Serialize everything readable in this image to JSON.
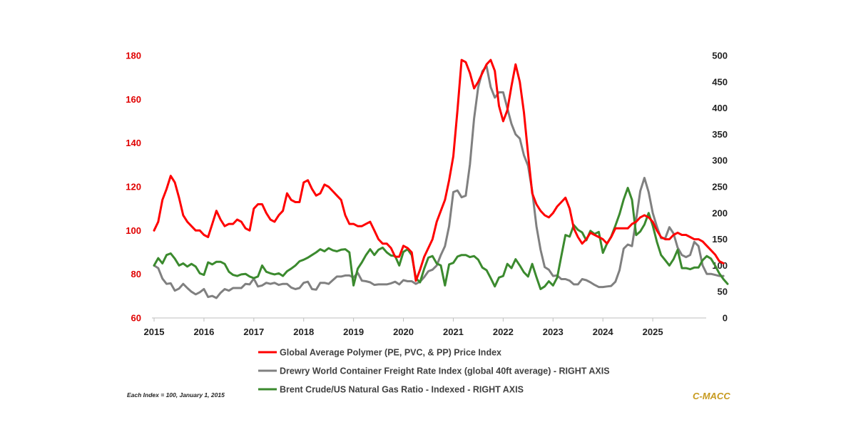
{
  "chart_data": {
    "type": "line",
    "x_start": 2015.0,
    "x_step": 0.0833333,
    "x_ticks": [
      "2015",
      "2016",
      "2017",
      "2018",
      "2019",
      "2020",
      "2021",
      "2022",
      "2023",
      "2024",
      "2025"
    ],
    "xlim": [
      2015,
      2026
    ],
    "left_axis": {
      "ticks": [
        "60",
        "80",
        "100",
        "120",
        "140",
        "160",
        "180"
      ],
      "ylim": [
        60,
        180
      ],
      "color": "#e00000"
    },
    "right_axis": {
      "ticks": [
        "0",
        "50",
        "100",
        "150",
        "200",
        "250",
        "300",
        "350",
        "400",
        "450",
        "500"
      ],
      "ylim": [
        0,
        500
      ]
    },
    "series": [
      {
        "name": "Global Average Polymer (PE, PVC, & PP) Price Index",
        "axis": "left",
        "color": "#ff0000",
        "values": [
          100,
          104,
          114,
          119,
          125,
          122,
          115,
          107,
          104,
          102,
          100,
          100,
          98,
          97,
          103,
          109,
          105,
          102,
          103,
          103,
          105,
          104,
          101,
          100,
          110,
          112,
          112,
          108,
          105,
          104,
          107,
          109,
          117,
          114,
          113,
          113,
          122,
          123,
          119,
          116,
          117,
          121,
          120,
          118,
          116,
          114,
          107,
          103,
          103,
          102,
          102,
          103,
          104,
          100,
          96,
          94,
          94,
          92,
          88,
          88,
          93,
          92,
          90,
          77,
          82,
          88,
          92,
          96,
          104,
          109,
          114,
          123,
          134,
          155,
          178,
          177,
          172,
          165,
          168,
          172,
          176,
          178,
          173,
          157,
          150,
          155,
          166,
          176,
          168,
          154,
          135,
          117,
          112,
          109,
          107,
          106,
          108,
          111,
          113,
          115,
          110,
          101,
          97,
          94,
          96,
          99,
          98,
          97,
          96,
          94,
          97,
          101,
          101,
          101,
          101,
          103,
          104,
          106,
          107,
          106,
          104,
          100,
          97,
          96,
          96,
          98,
          99,
          98,
          98,
          97,
          96,
          96,
          95,
          93,
          91,
          89,
          86,
          85
        ]
      },
      {
        "name": "Drewry World Container Freight Rate Index (global 40ft average) - RIGHT AXIS",
        "axis": "right",
        "color": "#808080",
        "values": [
          100,
          95,
          75,
          65,
          66,
          52,
          56,
          65,
          57,
          50,
          45,
          49,
          55,
          40,
          42,
          38,
          48,
          55,
          52,
          57,
          57,
          57,
          65,
          64,
          75,
          60,
          62,
          67,
          65,
          67,
          63,
          65,
          65,
          58,
          55,
          57,
          67,
          69,
          55,
          54,
          67,
          67,
          65,
          72,
          79,
          79,
          81,
          81,
          77,
          86,
          71,
          70,
          68,
          63,
          64,
          64,
          64,
          66,
          69,
          64,
          72,
          70,
          70,
          65,
          69,
          78,
          89,
          92,
          100,
          120,
          137,
          175,
          240,
          243,
          230,
          233,
          293,
          380,
          440,
          470,
          480,
          440,
          420,
          430,
          430,
          400,
          370,
          350,
          342,
          310,
          290,
          242,
          175,
          130,
          97,
          92,
          80,
          81,
          74,
          74,
          71,
          64,
          64,
          74,
          72,
          68,
          63,
          59,
          59,
          60,
          61,
          69,
          91,
          132,
          140,
          137,
          188,
          242,
          267,
          240,
          200,
          174,
          152,
          152,
          173,
          161,
          134,
          120,
          116,
          120,
          145,
          137,
          100,
          84,
          84,
          82,
          80,
          80
        ]
      },
      {
        "name": "Brent Crude/US Natural Gas Ratio - Indexed - RIGHT AXIS",
        "axis": "right",
        "color": "#3b8a2e",
        "values": [
          100,
          114,
          104,
          120,
          123,
          113,
          100,
          104,
          98,
          103,
          98,
          85,
          82,
          106,
          102,
          107,
          107,
          103,
          88,
          82,
          80,
          83,
          84,
          79,
          76,
          79,
          100,
          88,
          85,
          83,
          85,
          80,
          89,
          94,
          100,
          108,
          111,
          115,
          120,
          125,
          131,
          127,
          133,
          129,
          127,
          130,
          131,
          125,
          62,
          94,
          106,
          120,
          131,
          120,
          130,
          134,
          125,
          119,
          118,
          100,
          126,
          131,
          120,
          76,
          68,
          94,
          115,
          118,
          104,
          100,
          62,
          102,
          105,
          117,
          120,
          120,
          116,
          118,
          111,
          96,
          91,
          76,
          60,
          77,
          80,
          103,
          95,
          112,
          100,
          87,
          79,
          103,
          78,
          55,
          60,
          70,
          62,
          77,
          118,
          158,
          155,
          177,
          168,
          163,
          148,
          166,
          160,
          164,
          124,
          142,
          155,
          176,
          198,
          226,
          248,
          225,
          158,
          165,
          178,
          200,
          176,
          145,
          120,
          110,
          100,
          112,
          130,
          95,
          95,
          93,
          96,
          96,
          110,
          118,
          113,
          100,
          85,
          74,
          65
        ]
      }
    ]
  },
  "legend": [
    {
      "label": "Global Average Polymer (PE, PVC, & PP) Price Index",
      "color": "#ff0000"
    },
    {
      "label": "Drewry World Container Freight Rate Index (global 40ft average) - RIGHT AXIS",
      "color": "#808080"
    },
    {
      "label": "Brent Crude/US Natural Gas Ratio - Indexed - RIGHT AXIS",
      "color": "#3b8a2e"
    }
  ],
  "footnote": "Each Index = 100, January 1, 2015",
  "brand": "C-MACC",
  "brand_color": "#c79a1e"
}
